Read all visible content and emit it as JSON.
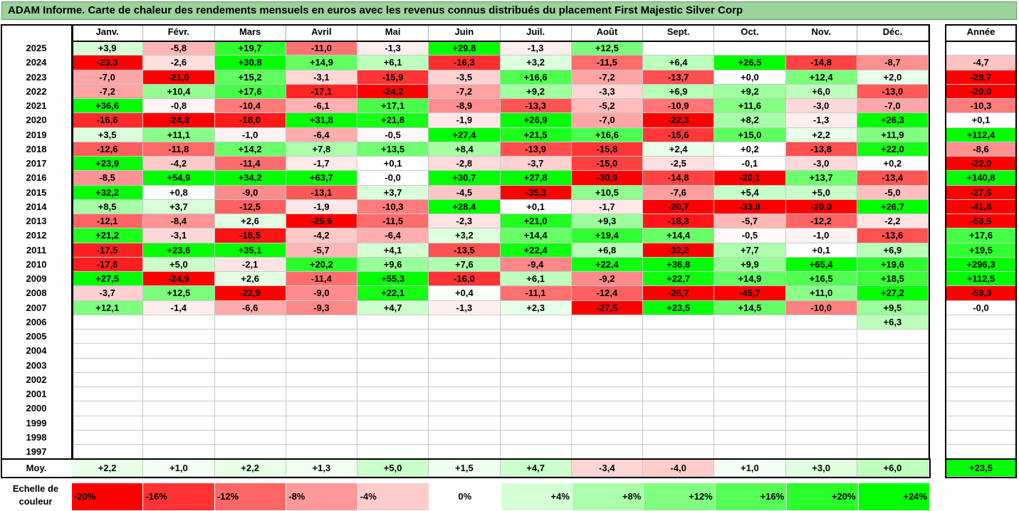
{
  "title": "ADAM Informe. Carte de chaleur des rendements mensuels en euros avec les revenus connus distribués du placement First Majestic Silver Corp",
  "chart_data": {
    "type": "heatmap",
    "title": "ADAM Informe. Carte de chaleur des rendements mensuels en euros avec les revenus connus distribués du placement First Majestic Silver Corp",
    "columns": [
      "Janv.",
      "Févr.",
      "Mars",
      "Avril",
      "Mai",
      "Juin",
      "Juil.",
      "Août",
      "Sept.",
      "Oct.",
      "Nov.",
      "Déc."
    ],
    "year_column_label": "Année",
    "average_row_label": "Moy.",
    "rows": [
      {
        "year": "2025",
        "months": [
          "+3,9",
          "-5,8",
          "+19,7",
          "-11,0",
          "-1,3",
          "+29,8",
          "-1,3",
          "+12,5",
          "",
          "",
          "",
          ""
        ],
        "annual": ""
      },
      {
        "year": "2024",
        "months": [
          "-23,3",
          "-2,6",
          "+30,8",
          "+14,9",
          "+6,1",
          "-16,3",
          "+3,2",
          "-11,5",
          "+6,4",
          "+26,5",
          "-14,8",
          "-8,7"
        ],
        "annual": "-4,7"
      },
      {
        "year": "2023",
        "months": [
          "-7,0",
          "-21,0",
          "+15,2",
          "-3,1",
          "-15,9",
          "-3,5",
          "+16,6",
          "-7,2",
          "-13,7",
          "+0,0",
          "+12,4",
          "+2,0"
        ],
        "annual": "-28,7"
      },
      {
        "year": "2022",
        "months": [
          "-7,2",
          "+10,4",
          "+17,6",
          "-17,1",
          "-24,2",
          "-7,2",
          "+9,2",
          "-3,3",
          "+6,9",
          "+9,2",
          "+6,0",
          "-13,0"
        ],
        "annual": "-20,0"
      },
      {
        "year": "2021",
        "months": [
          "+36,6",
          "-0,8",
          "-10,4",
          "-6,1",
          "+17,1",
          "-8,9",
          "-13,3",
          "-5,2",
          "-10,9",
          "+11,6",
          "-3,0",
          "-7,0"
        ],
        "annual": "-10,3"
      },
      {
        "year": "2020",
        "months": [
          "-16,6",
          "-24,8",
          "-18,0",
          "+31,8",
          "+21,8",
          "-1,9",
          "+26,9",
          "-7,0",
          "-22,3",
          "+8,2",
          "-1,3",
          "+26,3"
        ],
        "annual": "+0,1"
      },
      {
        "year": "2019",
        "months": [
          "+3,5",
          "+11,1",
          "-1,0",
          "-6,4",
          "-0,5",
          "+27,4",
          "+21,5",
          "+16,6",
          "-15,6",
          "+15,0",
          "+2,2",
          "+11,9"
        ],
        "annual": "+112,4"
      },
      {
        "year": "2018",
        "months": [
          "-12,6",
          "-11,8",
          "+14,2",
          "+7,8",
          "+13,5",
          "+8,4",
          "-13,9",
          "-15,8",
          "+2,4",
          "+0,2",
          "-13,8",
          "+22,0"
        ],
        "annual": "-8,6"
      },
      {
        "year": "2017",
        "months": [
          "+23,9",
          "-4,2",
          "-11,4",
          "-1,7",
          "+0,1",
          "-2,8",
          "-3,7",
          "-15,0",
          "-2,5",
          "-0,1",
          "-3,0",
          "+0,2"
        ],
        "annual": "-22,0"
      },
      {
        "year": "2016",
        "months": [
          "-8,5",
          "+54,9",
          "+34,2",
          "+63,7",
          "-0,0",
          "+30,7",
          "+27,8",
          "-30,9",
          "-14,8",
          "-20,1",
          "+13,7",
          "-13,4"
        ],
        "annual": "+140,8"
      },
      {
        "year": "2015",
        "months": [
          "+32,2",
          "+0,8",
          "-9,0",
          "-13,1",
          "+3,7",
          "-4,5",
          "-35,3",
          "+10,5",
          "-7,6",
          "+5,4",
          "+5,0",
          "-5,0"
        ],
        "annual": "-27,5"
      },
      {
        "year": "2014",
        "months": [
          "+8,5",
          "+3,7",
          "-12,5",
          "-1,9",
          "-10,3",
          "+28,4",
          "+0,1",
          "-1,7",
          "-20,7",
          "-33,8",
          "-20,0",
          "+26,7"
        ],
        "annual": "-41,8"
      },
      {
        "year": "2013",
        "months": [
          "-12,1",
          "-8,4",
          "+2,6",
          "-25,6",
          "-11,5",
          "-2,3",
          "+21,0",
          "+9,3",
          "-18,3",
          "-5,7",
          "-12,2",
          "-2,2"
        ],
        "annual": "-53,5"
      },
      {
        "year": "2012",
        "months": [
          "+21,2",
          "-3,1",
          "-18,5",
          "-4,2",
          "-6,4",
          "+3,2",
          "+14,4",
          "+19,4",
          "+14,4",
          "-0,5",
          "-1,0",
          "-13,6"
        ],
        "annual": "+17,6"
      },
      {
        "year": "2011",
        "months": [
          "-17,5",
          "+23,6",
          "+35,1",
          "-5,7",
          "+4,1",
          "-13,5",
          "+22,4",
          "+6,8",
          "-32,3",
          "+7,7",
          "+0,1",
          "+6,9"
        ],
        "annual": "+19,5"
      },
      {
        "year": "2010",
        "months": [
          "-17,6",
          "+5,0",
          "-2,1",
          "+20,2",
          "+9,6",
          "+7,6",
          "-9,4",
          "+22,4",
          "+36,8",
          "+9,9",
          "+65,4",
          "+19,6"
        ],
        "annual": "+296,3"
      },
      {
        "year": "2009",
        "months": [
          "+27,5",
          "-24,9",
          "+2,6",
          "-11,4",
          "+55,3",
          "-16,0",
          "+6,1",
          "-9,2",
          "+22,7",
          "+14,9",
          "+16,5",
          "+18,5"
        ],
        "annual": "+112,5"
      },
      {
        "year": "2008",
        "months": [
          "-3,7",
          "+12,5",
          "-22,9",
          "-9,0",
          "+22,1",
          "+0,4",
          "-11,1",
          "-12,4",
          "-26,7",
          "-45,7",
          "+11,0",
          "+27,2"
        ],
        "annual": "-59,3"
      },
      {
        "year": "2007",
        "months": [
          "+12,1",
          "-1,4",
          "-6,6",
          "-9,3",
          "+4,7",
          "-1,3",
          "+2,3",
          "-27,5",
          "+23,5",
          "+14,5",
          "-10,0",
          "+9,5"
        ],
        "annual": "-0,0"
      },
      {
        "year": "2006",
        "months": [
          "",
          "",
          "",
          "",
          "",
          "",
          "",
          "",
          "",
          "",
          "",
          "+6,3"
        ],
        "annual": ""
      },
      {
        "year": "2005",
        "months": [
          "",
          "",
          "",
          "",
          "",
          "",
          "",
          "",
          "",
          "",
          "",
          ""
        ],
        "annual": ""
      },
      {
        "year": "2004",
        "months": [
          "",
          "",
          "",
          "",
          "",
          "",
          "",
          "",
          "",
          "",
          "",
          ""
        ],
        "annual": ""
      },
      {
        "year": "2003",
        "months": [
          "",
          "",
          "",
          "",
          "",
          "",
          "",
          "",
          "",
          "",
          "",
          ""
        ],
        "annual": ""
      },
      {
        "year": "2002",
        "months": [
          "",
          "",
          "",
          "",
          "",
          "",
          "",
          "",
          "",
          "",
          "",
          ""
        ],
        "annual": ""
      },
      {
        "year": "2001",
        "months": [
          "",
          "",
          "",
          "",
          "",
          "",
          "",
          "",
          "",
          "",
          "",
          ""
        ],
        "annual": ""
      },
      {
        "year": "2000",
        "months": [
          "",
          "",
          "",
          "",
          "",
          "",
          "",
          "",
          "",
          "",
          "",
          ""
        ],
        "annual": ""
      },
      {
        "year": "1999",
        "months": [
          "",
          "",
          "",
          "",
          "",
          "",
          "",
          "",
          "",
          "",
          "",
          ""
        ],
        "annual": ""
      },
      {
        "year": "1998",
        "months": [
          "",
          "",
          "",
          "",
          "",
          "",
          "",
          "",
          "",
          "",
          "",
          ""
        ],
        "annual": ""
      },
      {
        "year": "1997",
        "months": [
          "",
          "",
          "",
          "",
          "",
          "",
          "",
          "",
          "",
          "",
          "",
          ""
        ],
        "annual": ""
      }
    ],
    "averages": [
      "+2,2",
      "+1,0",
      "+2,2",
      "+1,3",
      "+5,0",
      "+1,5",
      "+4,7",
      "-3,4",
      "-4,0",
      "+1,0",
      "+3,0",
      "+6,0"
    ],
    "average_annual": "+23,5",
    "color_scale": {
      "label": "Echelle de couleur",
      "steps": [
        {
          "text": "-20%",
          "value": -20
        },
        {
          "text": "-16%",
          "value": -16
        },
        {
          "text": "-12%",
          "value": -12
        },
        {
          "text": "-8%",
          "value": -8
        },
        {
          "text": "-4%",
          "value": -4
        },
        {
          "text": "0%",
          "value": 0
        },
        {
          "text": "+4%",
          "value": 4
        },
        {
          "text": "+8%",
          "value": 8
        },
        {
          "text": "+12%",
          "value": 12
        },
        {
          "text": "+16%",
          "value": 16
        },
        {
          "text": "+20%",
          "value": 20
        },
        {
          "text": "+24%",
          "value": 24
        }
      ],
      "negative_color": "#ff0000",
      "zero_color": "#ffffff",
      "positive_color": "#00ff00"
    }
  }
}
